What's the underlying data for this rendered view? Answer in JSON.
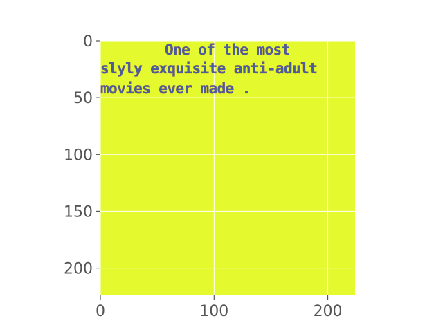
{
  "chart_data": {
    "type": "image",
    "image_shape": [
      224,
      224
    ],
    "background_color": "#e5f92f",
    "text_color": "#4a5f9a",
    "grid": true,
    "grid_color": "#ffffff",
    "x_ticks": [
      0,
      100,
      200
    ],
    "y_ticks": [
      0,
      50,
      100,
      150,
      200
    ],
    "xlim": [
      0,
      224
    ],
    "ylim": [
      224,
      0
    ],
    "image_text_lines": [
      "One of the most",
      "slyly exquisite anti-adult",
      "movies ever made ."
    ]
  }
}
